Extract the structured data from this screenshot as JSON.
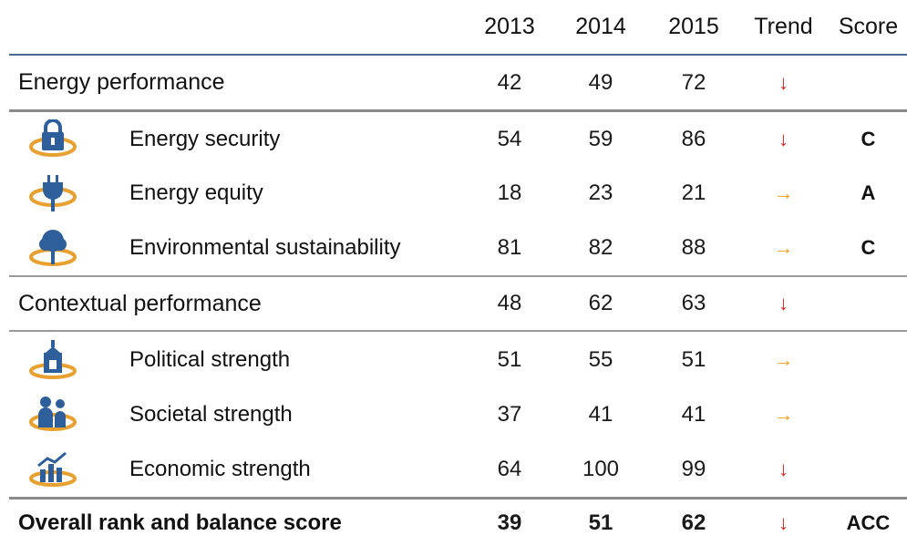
{
  "header": {
    "y2013": "2013",
    "y2014": "2014",
    "y2015": "2015",
    "trend": "Trend",
    "score": "Score"
  },
  "rows": [
    {
      "label": "Energy performance",
      "v2013": "42",
      "v2014": "49",
      "v2015": "72",
      "trend": "↓",
      "score": ""
    },
    {
      "label": "Energy security",
      "icon": "lock-icon",
      "v2013": "54",
      "v2014": "59",
      "v2015": "86",
      "trend": "↓",
      "score": "C"
    },
    {
      "label": "Energy equity",
      "icon": "plug-icon",
      "v2013": "18",
      "v2014": "23",
      "v2015": "21",
      "trend": "→",
      "score": "A"
    },
    {
      "label": "Environmental sustainability",
      "icon": "tree-icon",
      "v2013": "81",
      "v2014": "82",
      "v2015": "88",
      "trend": "→",
      "score": "C"
    },
    {
      "label": "Contextual performance",
      "v2013": "48",
      "v2014": "62",
      "v2015": "63",
      "trend": "↓",
      "score": ""
    },
    {
      "label": "Political strength",
      "icon": "government-building-icon",
      "v2013": "51",
      "v2014": "55",
      "v2015": "51",
      "trend": "→",
      "score": ""
    },
    {
      "label": "Societal strength",
      "icon": "people-icon",
      "v2013": "37",
      "v2014": "41",
      "v2015": "41",
      "trend": "→",
      "score": ""
    },
    {
      "label": "Economic strength",
      "icon": "bar-chart-icon",
      "v2013": "64",
      "v2014": "100",
      "v2015": "99",
      "trend": "↓",
      "score": ""
    },
    {
      "label": "Overall rank and balance score",
      "v2013": "39",
      "v2014": "51",
      "v2015": "62",
      "trend": "↓",
      "score": "ACC"
    }
  ],
  "colors": {
    "trend_down": "#e02020",
    "trend_flat": "#f0a020",
    "icon_blue": "#2f5f9a",
    "icon_orange": "#e8a030"
  }
}
